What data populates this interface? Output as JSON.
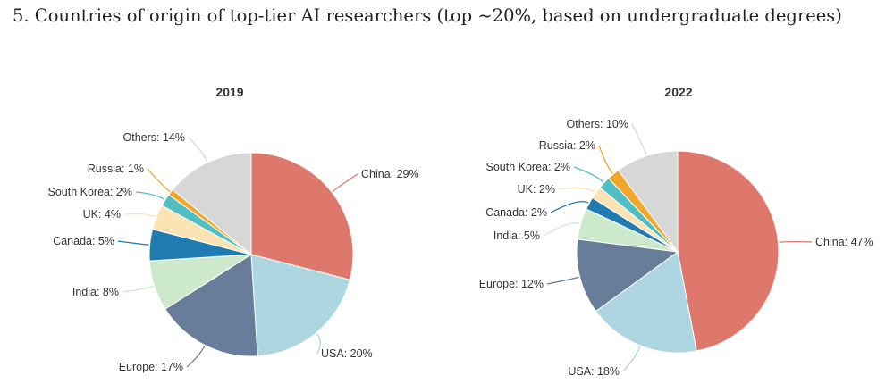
{
  "page": {
    "title": "5. Countries of origin of top-tier AI researchers (top ~20%, based on undergraduate degrees)"
  },
  "chart_data": [
    {
      "type": "pie",
      "title": "2019",
      "start": "12 o'clock",
      "direction": "clockwise",
      "slices": [
        {
          "name": "China",
          "label": "China: 29%",
          "value": 29,
          "color": "#de786c"
        },
        {
          "name": "USA",
          "label": "USA: 20%",
          "value": 20,
          "color": "#aed6e0"
        },
        {
          "name": "Europe",
          "label": "Europe: 17%",
          "value": 17,
          "color": "#687d99"
        },
        {
          "name": "India",
          "label": "India: 8%",
          "value": 8,
          "color": "#cde9cc"
        },
        {
          "name": "Canada",
          "label": "Canada: 5%",
          "value": 5,
          "color": "#1f7bb0"
        },
        {
          "name": "UK",
          "label": "UK: 4%",
          "value": 4,
          "color": "#fbe3b4"
        },
        {
          "name": "South Korea",
          "label": "South Korea: 2%",
          "value": 2,
          "color": "#4fbfc3"
        },
        {
          "name": "Russia",
          "label": "Russia: 1%",
          "value": 1,
          "color": "#f3a62e"
        },
        {
          "name": "Others",
          "label": "Others: 14%",
          "value": 14,
          "color": "#d7d7d7"
        }
      ]
    },
    {
      "type": "pie",
      "title": "2022",
      "start": "12 o'clock",
      "direction": "clockwise",
      "slices": [
        {
          "name": "China",
          "label": "China: 47%",
          "value": 47,
          "color": "#de786c"
        },
        {
          "name": "USA",
          "label": "USA: 18%",
          "value": 18,
          "color": "#aed6e0"
        },
        {
          "name": "Europe",
          "label": "Europe: 12%",
          "value": 12,
          "color": "#687d99"
        },
        {
          "name": "India",
          "label": "India: 5%",
          "value": 5,
          "color": "#cde9cc"
        },
        {
          "name": "Canada",
          "label": "Canada: 2%",
          "value": 2,
          "color": "#1f7bb0"
        },
        {
          "name": "UK",
          "label": "UK: 2%",
          "value": 2,
          "color": "#fbe3b4"
        },
        {
          "name": "South Korea",
          "label": "South Korea: 2%",
          "value": 2,
          "color": "#4fbfc3"
        },
        {
          "name": "Russia",
          "label": "Russia: 2%",
          "value": 2,
          "color": "#f3a62e"
        },
        {
          "name": "Others",
          "label": "Others: 10%",
          "value": 10,
          "color": "#d7d7d7"
        }
      ]
    }
  ]
}
